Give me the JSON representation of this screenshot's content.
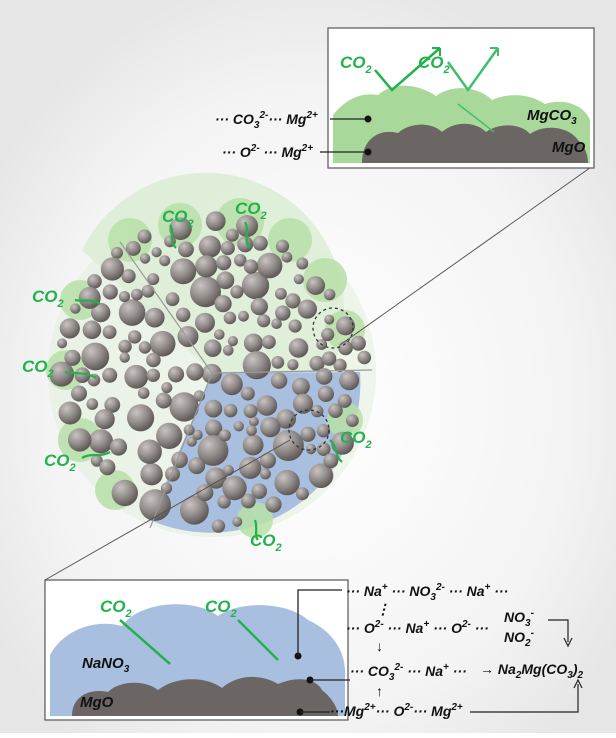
{
  "colors": {
    "background": "#f2f2f2",
    "co2_green": "#22b24c",
    "mgco3_green": "#a9d99a",
    "nano3_blue": "#a9bfe0",
    "mgo_gray": "#6b6664",
    "particle_gray": "#8f8a88",
    "frame": "#555555"
  },
  "co2_labels": [
    {
      "base": "CO",
      "sub": "2"
    },
    {
      "base": "CO",
      "sub": "2"
    },
    {
      "base": "CO",
      "sub": "2"
    },
    {
      "base": "CO",
      "sub": "2"
    },
    {
      "base": "CO",
      "sub": "2"
    },
    {
      "base": "CO",
      "sub": "2"
    },
    {
      "base": "CO",
      "sub": "2"
    },
    {
      "base": "CO",
      "sub": "2"
    }
  ],
  "top_inset": {
    "co2_left": {
      "base": "CO",
      "sub": "2"
    },
    "co2_right": {
      "base": "CO",
      "sub": "2"
    },
    "layer_top": {
      "base": "MgCO",
      "sub": "3"
    },
    "layer_bottom": "MgO",
    "line1": {
      "a": "··· CO",
      "sub": "3",
      "sup": "2-",
      "b": "··· Mg",
      "sup2": "2+"
    },
    "line2": {
      "a": "··· O",
      "sup": "2-",
      "b": " ··· Mg",
      "sup2": "2+"
    }
  },
  "bottom_inset": {
    "co2_left": {
      "base": "CO",
      "sub": "2"
    },
    "co2_right": {
      "base": "CO",
      "sub": "2"
    },
    "layer_top": {
      "base": "NaNO",
      "sub": "3"
    },
    "layer_bottom": "MgO"
  },
  "reactions": {
    "r1": {
      "a": "··· Na",
      "s1": "+",
      "b": " ··· NO",
      "sub": "3",
      "s2": "2-",
      "c": " ··· Na",
      "s3": "+",
      "d": " ···"
    },
    "r2": {
      "a": "··· O",
      "s1": "2-",
      "b": " ··· Na",
      "s2": "+",
      "c": "··· O",
      "s3": "2-",
      "d": " ··· "
    },
    "no3": {
      "base": "NO",
      "sub": "3",
      "sup": "-"
    },
    "no2": {
      "base": "NO",
      "sub": "2",
      "sup": "-"
    },
    "r3": {
      "a": "··· CO",
      "sub": "3",
      "sup": "2-",
      "b": " ··· Na",
      "s2": "+",
      "c": " ···"
    },
    "product": {
      "arrow": "→ Na",
      "s1": "2",
      "b": "Mg(CO",
      "s2": "3",
      "c": ")",
      "s3": "2"
    },
    "r4": {
      "a": "···Mg",
      "s1": "2+",
      "b": "··· O",
      "s2": "2-",
      "c": "··· Mg",
      "s3": "2+"
    },
    "dots_vertical": "⋮",
    "arrow_down": "↓",
    "arrow_up": "↑"
  }
}
